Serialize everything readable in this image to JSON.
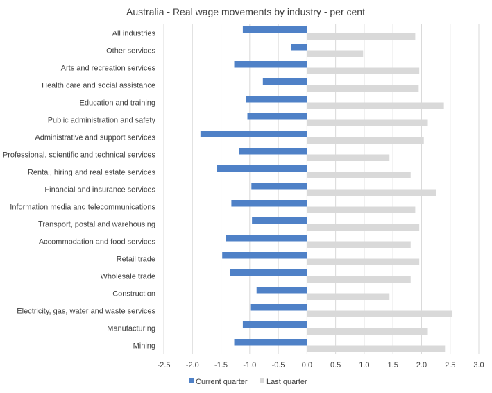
{
  "chart_data": {
    "type": "bar",
    "orientation": "horizontal",
    "title": "Australia  - Real wage movements  by industry  - per cent",
    "xlabel": "",
    "ylabel": "",
    "xlim": [
      -2.5,
      3.0
    ],
    "x_ticks": [
      "-2.5",
      "-2.0",
      "-1.5",
      "-1.0",
      "-0.5",
      "0.0",
      "0.5",
      "1.0",
      "1.5",
      "2.0",
      "2.5",
      "3.0"
    ],
    "grid": true,
    "legend_position": "bottom",
    "categories": [
      "All industries",
      "Other services",
      "Arts and recreation services",
      "Health care and social assistance",
      "Education and training",
      "Public administration and safety",
      "Administrative and support services",
      "Professional, scientific and technical services",
      "Rental, hiring and real estate services",
      "Financial and insurance services",
      "Information media and telecommunications",
      "Transport, postal and warehousing",
      "Accommodation and food services",
      "Retail trade",
      "Wholesale trade",
      "Construction",
      "Electricity, gas, water and waste services",
      "Manufacturing",
      "Mining"
    ],
    "series": [
      {
        "name": "Current quarter",
        "color": "#4f81c7",
        "values": [
          -1.12,
          -0.28,
          -1.27,
          -0.77,
          -1.06,
          -1.04,
          -1.86,
          -1.18,
          -1.57,
          -0.97,
          -1.32,
          -0.96,
          -1.41,
          -1.48,
          -1.34,
          -0.88,
          -0.99,
          -1.12,
          -1.27
        ]
      },
      {
        "name": "Last quarter",
        "color": "#d9d9d9",
        "values": [
          1.89,
          0.98,
          1.96,
          1.95,
          2.39,
          2.11,
          2.04,
          1.44,
          1.81,
          2.25,
          1.89,
          1.96,
          1.81,
          1.96,
          1.81,
          1.44,
          2.54,
          2.11,
          2.41
        ]
      }
    ]
  }
}
